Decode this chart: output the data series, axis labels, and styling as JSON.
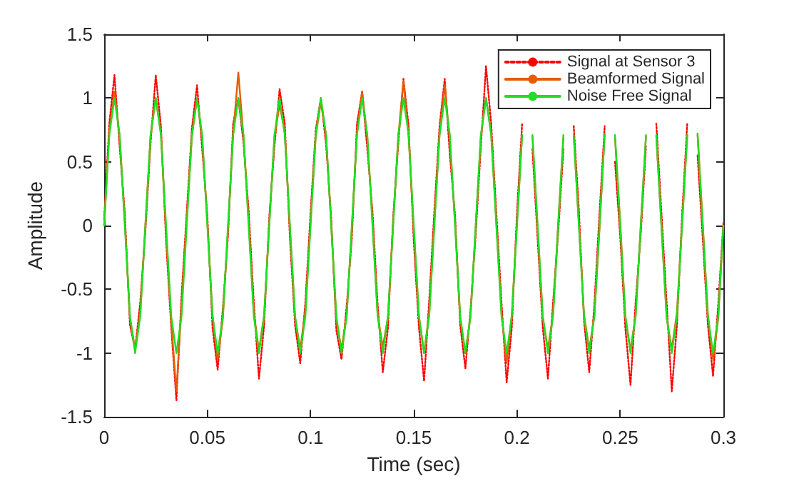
{
  "chart_data": {
    "type": "line",
    "xlabel": "Time (sec)",
    "ylabel": "Amplitude",
    "x": [
      0,
      0.0025,
      0.005,
      0.0075,
      0.01,
      0.0125,
      0.015,
      0.0175,
      0.02,
      0.0225,
      0.025,
      0.0275,
      0.03,
      0.0325,
      0.035,
      0.0375,
      0.04,
      0.0425,
      0.045,
      0.0475,
      0.05,
      0.0525,
      0.055,
      0.0575,
      0.06,
      0.0625,
      0.065,
      0.0675,
      0.07,
      0.0725,
      0.075,
      0.0775,
      0.08,
      0.0825,
      0.085,
      0.0875,
      0.09,
      0.0925,
      0.095,
      0.0975,
      0.1,
      0.1025,
      0.105,
      0.1075,
      0.11,
      0.1125,
      0.115,
      0.1175,
      0.12,
      0.1225,
      0.125,
      0.1275,
      0.13,
      0.1325,
      0.135,
      0.1375,
      0.14,
      0.1425,
      0.145,
      0.1475,
      0.15,
      0.1525,
      0.155,
      0.1575,
      0.16,
      0.1625,
      0.165,
      0.1675,
      0.17,
      0.1725,
      0.175,
      0.1775,
      0.18,
      0.1825,
      0.185,
      0.1875,
      0.19,
      0.1925,
      0.195,
      0.1975,
      0.2,
      0.2025,
      0.205,
      0.2075,
      0.21,
      0.2125,
      0.215,
      0.2175,
      0.22,
      0.2225,
      0.225,
      0.2275,
      0.23,
      0.2325,
      0.235,
      0.2375,
      0.24,
      0.2425,
      0.245,
      0.2475,
      0.25,
      0.2525,
      0.255,
      0.2575,
      0.26,
      0.2625,
      0.265,
      0.2675,
      0.27,
      0.2725,
      0.275,
      0.2775,
      0.28,
      0.2825,
      0.285,
      0.2875,
      0.29,
      0.2925,
      0.295,
      0.2975,
      0.3
    ],
    "series": [
      {
        "name": "Signal at Sensor 3",
        "color": "#ff0000",
        "line_style": "dotted",
        "values": [
          0.05,
          0.8,
          1.18,
          0.62,
          0.1,
          -0.78,
          -0.97,
          -0.6,
          -0.04,
          0.65,
          1.18,
          0.78,
          -0.12,
          -0.8,
          -1.37,
          -0.55,
          0.1,
          0.76,
          1.1,
          0.6,
          0.08,
          -0.8,
          -1.13,
          -0.65,
          -0.08,
          0.8,
          1.0,
          0.65,
          0.12,
          -0.6,
          -1.2,
          -0.78,
          0.07,
          0.62,
          1.07,
          0.8,
          -0.1,
          -0.78,
          -1.08,
          -0.6,
          0.1,
          0.75,
          1.0,
          0.64,
          0.06,
          -0.82,
          -1.05,
          -0.63,
          -0.1,
          0.8,
          1.05,
          0.6,
          0.11,
          -0.62,
          -1.15,
          -0.8,
          0.06,
          0.64,
          1.15,
          0.78,
          -0.12,
          -0.8,
          -1.22,
          -0.58,
          0.12,
          0.78,
          1.15,
          0.55,
          0.08,
          -0.78,
          -1.12,
          -0.66,
          -0.07,
          0.62,
          1.25,
          0.8,
          0.1,
          -0.6,
          -1.23,
          -0.8,
          0.1,
          0.8,
          null,
          0.6,
          -0.1,
          -0.8,
          -1.2,
          -0.6,
          -0.05,
          0.6,
          null,
          0.78,
          0.12,
          -0.75,
          -1.15,
          -0.62,
          0.1,
          0.78,
          null,
          0.5,
          -0.08,
          -0.8,
          -1.25,
          -0.6,
          -0.06,
          0.62,
          null,
          0.8,
          0.1,
          -0.6,
          -1.3,
          -0.78,
          0.08,
          0.8,
          null,
          0.55,
          -0.1,
          -0.78,
          -1.18,
          -0.62,
          0.02
        ]
      },
      {
        "name": "Beamformed Signal",
        "color": "#e65c00",
        "line_style": "solid",
        "values": [
          0,
          0.74,
          1.05,
          0.7,
          0.03,
          -0.72,
          -0.97,
          -0.68,
          0.02,
          0.71,
          1.0,
          0.72,
          -0.05,
          -0.75,
          -1.3,
          -0.62,
          0.05,
          0.7,
          1.0,
          0.68,
          0.02,
          -0.7,
          -1.05,
          -0.73,
          -0.03,
          0.72,
          1.2,
          0.7,
          0.04,
          -0.68,
          -0.98,
          -0.7,
          0.02,
          0.69,
          0.95,
          0.73,
          -0.02,
          -0.72,
          -0.97,
          -0.66,
          0.03,
          0.7,
          0.97,
          0.71,
          0.01,
          -0.74,
          -0.97,
          -0.7,
          -0.02,
          0.73,
          1.05,
          0.69,
          0.04,
          -0.7,
          -0.95,
          -0.72,
          0.01,
          0.7,
          1.13,
          0.7,
          -0.03,
          -0.71,
          -1.0,
          -0.68,
          0.04,
          0.72,
          1.1,
          0.66,
          0.02,
          -0.73,
          -1.0,
          -0.71,
          -0.01,
          0.7,
          1.0,
          0.72,
          0.03,
          -0.69,
          -1.08,
          -0.7,
          0.02,
          0.71,
          null,
          0.7,
          -0.02,
          -0.72,
          -0.97,
          -0.69,
          0.03,
          0.69,
          null,
          0.71,
          0.01,
          -0.7,
          -0.97,
          -0.71,
          -0.02,
          0.72,
          null,
          0.69,
          0.03,
          -0.71,
          -0.98,
          -0.7,
          0.01,
          0.7,
          null,
          0.7,
          -0.01,
          -0.72,
          -0.97,
          -0.68,
          0.02,
          0.71,
          null,
          0.72,
          0.02,
          -0.7,
          -1.05,
          -0.73,
          0
        ]
      },
      {
        "name": "Noise Free Signal",
        "color": "#22dd22",
        "line_style": "solid",
        "values": [
          0,
          0.71,
          1,
          0.71,
          0,
          -0.71,
          -1,
          -0.71,
          0,
          0.71,
          1,
          0.71,
          0,
          -0.71,
          -1,
          -0.71,
          0,
          0.71,
          1,
          0.71,
          0,
          -0.71,
          -1,
          -0.71,
          0,
          0.71,
          1,
          0.71,
          0,
          -0.71,
          -1,
          -0.71,
          0,
          0.71,
          1,
          0.71,
          0,
          -0.71,
          -1,
          -0.71,
          0,
          0.71,
          1,
          0.71,
          0,
          -0.71,
          -1,
          -0.71,
          0,
          0.71,
          1,
          0.71,
          0,
          -0.71,
          -1,
          -0.71,
          0,
          0.71,
          1,
          0.71,
          0,
          -0.71,
          -1,
          -0.71,
          0,
          0.71,
          1,
          0.71,
          0,
          -0.71,
          -1,
          -0.71,
          0,
          0.71,
          1,
          0.71,
          0,
          -0.71,
          -1,
          -0.71,
          0,
          0.71,
          null,
          0.71,
          0,
          -0.71,
          -1,
          -0.71,
          0,
          0.71,
          null,
          0.71,
          0,
          -0.71,
          -1,
          -0.71,
          0,
          0.71,
          null,
          0.71,
          0,
          -0.71,
          -1,
          -0.71,
          0,
          0.71,
          null,
          0.71,
          0,
          -0.71,
          -1,
          -0.71,
          0,
          0.71,
          null,
          0.71,
          0,
          -0.71,
          -1,
          -0.71,
          0
        ]
      }
    ],
    "xlim": [
      0,
      0.3
    ],
    "xticks": [
      0,
      0.05,
      0.1,
      0.15,
      0.2,
      0.25,
      0.3
    ],
    "ylim": [
      -1.5,
      1.5
    ],
    "yticks": [
      -1.5,
      -1,
      -0.5,
      0,
      0.5,
      1,
      1.5
    ],
    "grid": false,
    "legend": "top right",
    "marker": "none"
  }
}
